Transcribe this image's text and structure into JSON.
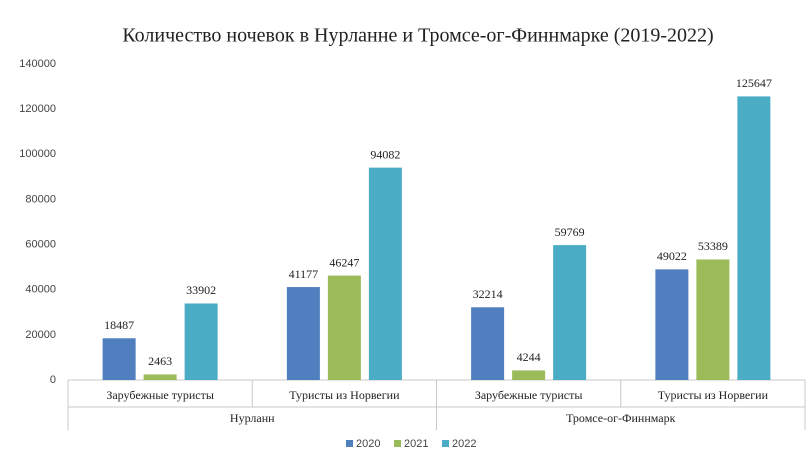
{
  "chart_data": {
    "type": "bar",
    "title": "Количество ночевок в Нурланне и Тромсе-ог-Финнмарке (2019-2022)",
    "groups": [
      {
        "name": "Нурланн",
        "categories": [
          "Зарубежные туристы",
          "Туристы из Норвегии"
        ]
      },
      {
        "name": "Тромсе-ог-Финнмарк",
        "categories": [
          "Зарубежные туристы",
          "Туристы из Норвегии"
        ]
      }
    ],
    "series": [
      {
        "name": "2020",
        "color": "#4f7fbe",
        "values": [
          18487,
          41177,
          32214,
          49022
        ]
      },
      {
        "name": "2021",
        "color": "#9bbb59",
        "values": [
          2463,
          46247,
          4244,
          53389
        ]
      },
      {
        "name": "2022",
        "color": "#4bacc6",
        "values": [
          33902,
          94082,
          59769,
          125647
        ]
      }
    ],
    "ylim": [
      0,
      140000
    ],
    "yticks": [
      0,
      20000,
      40000,
      60000,
      80000,
      100000,
      120000,
      140000
    ],
    "grid": false,
    "legend": "bottom"
  }
}
